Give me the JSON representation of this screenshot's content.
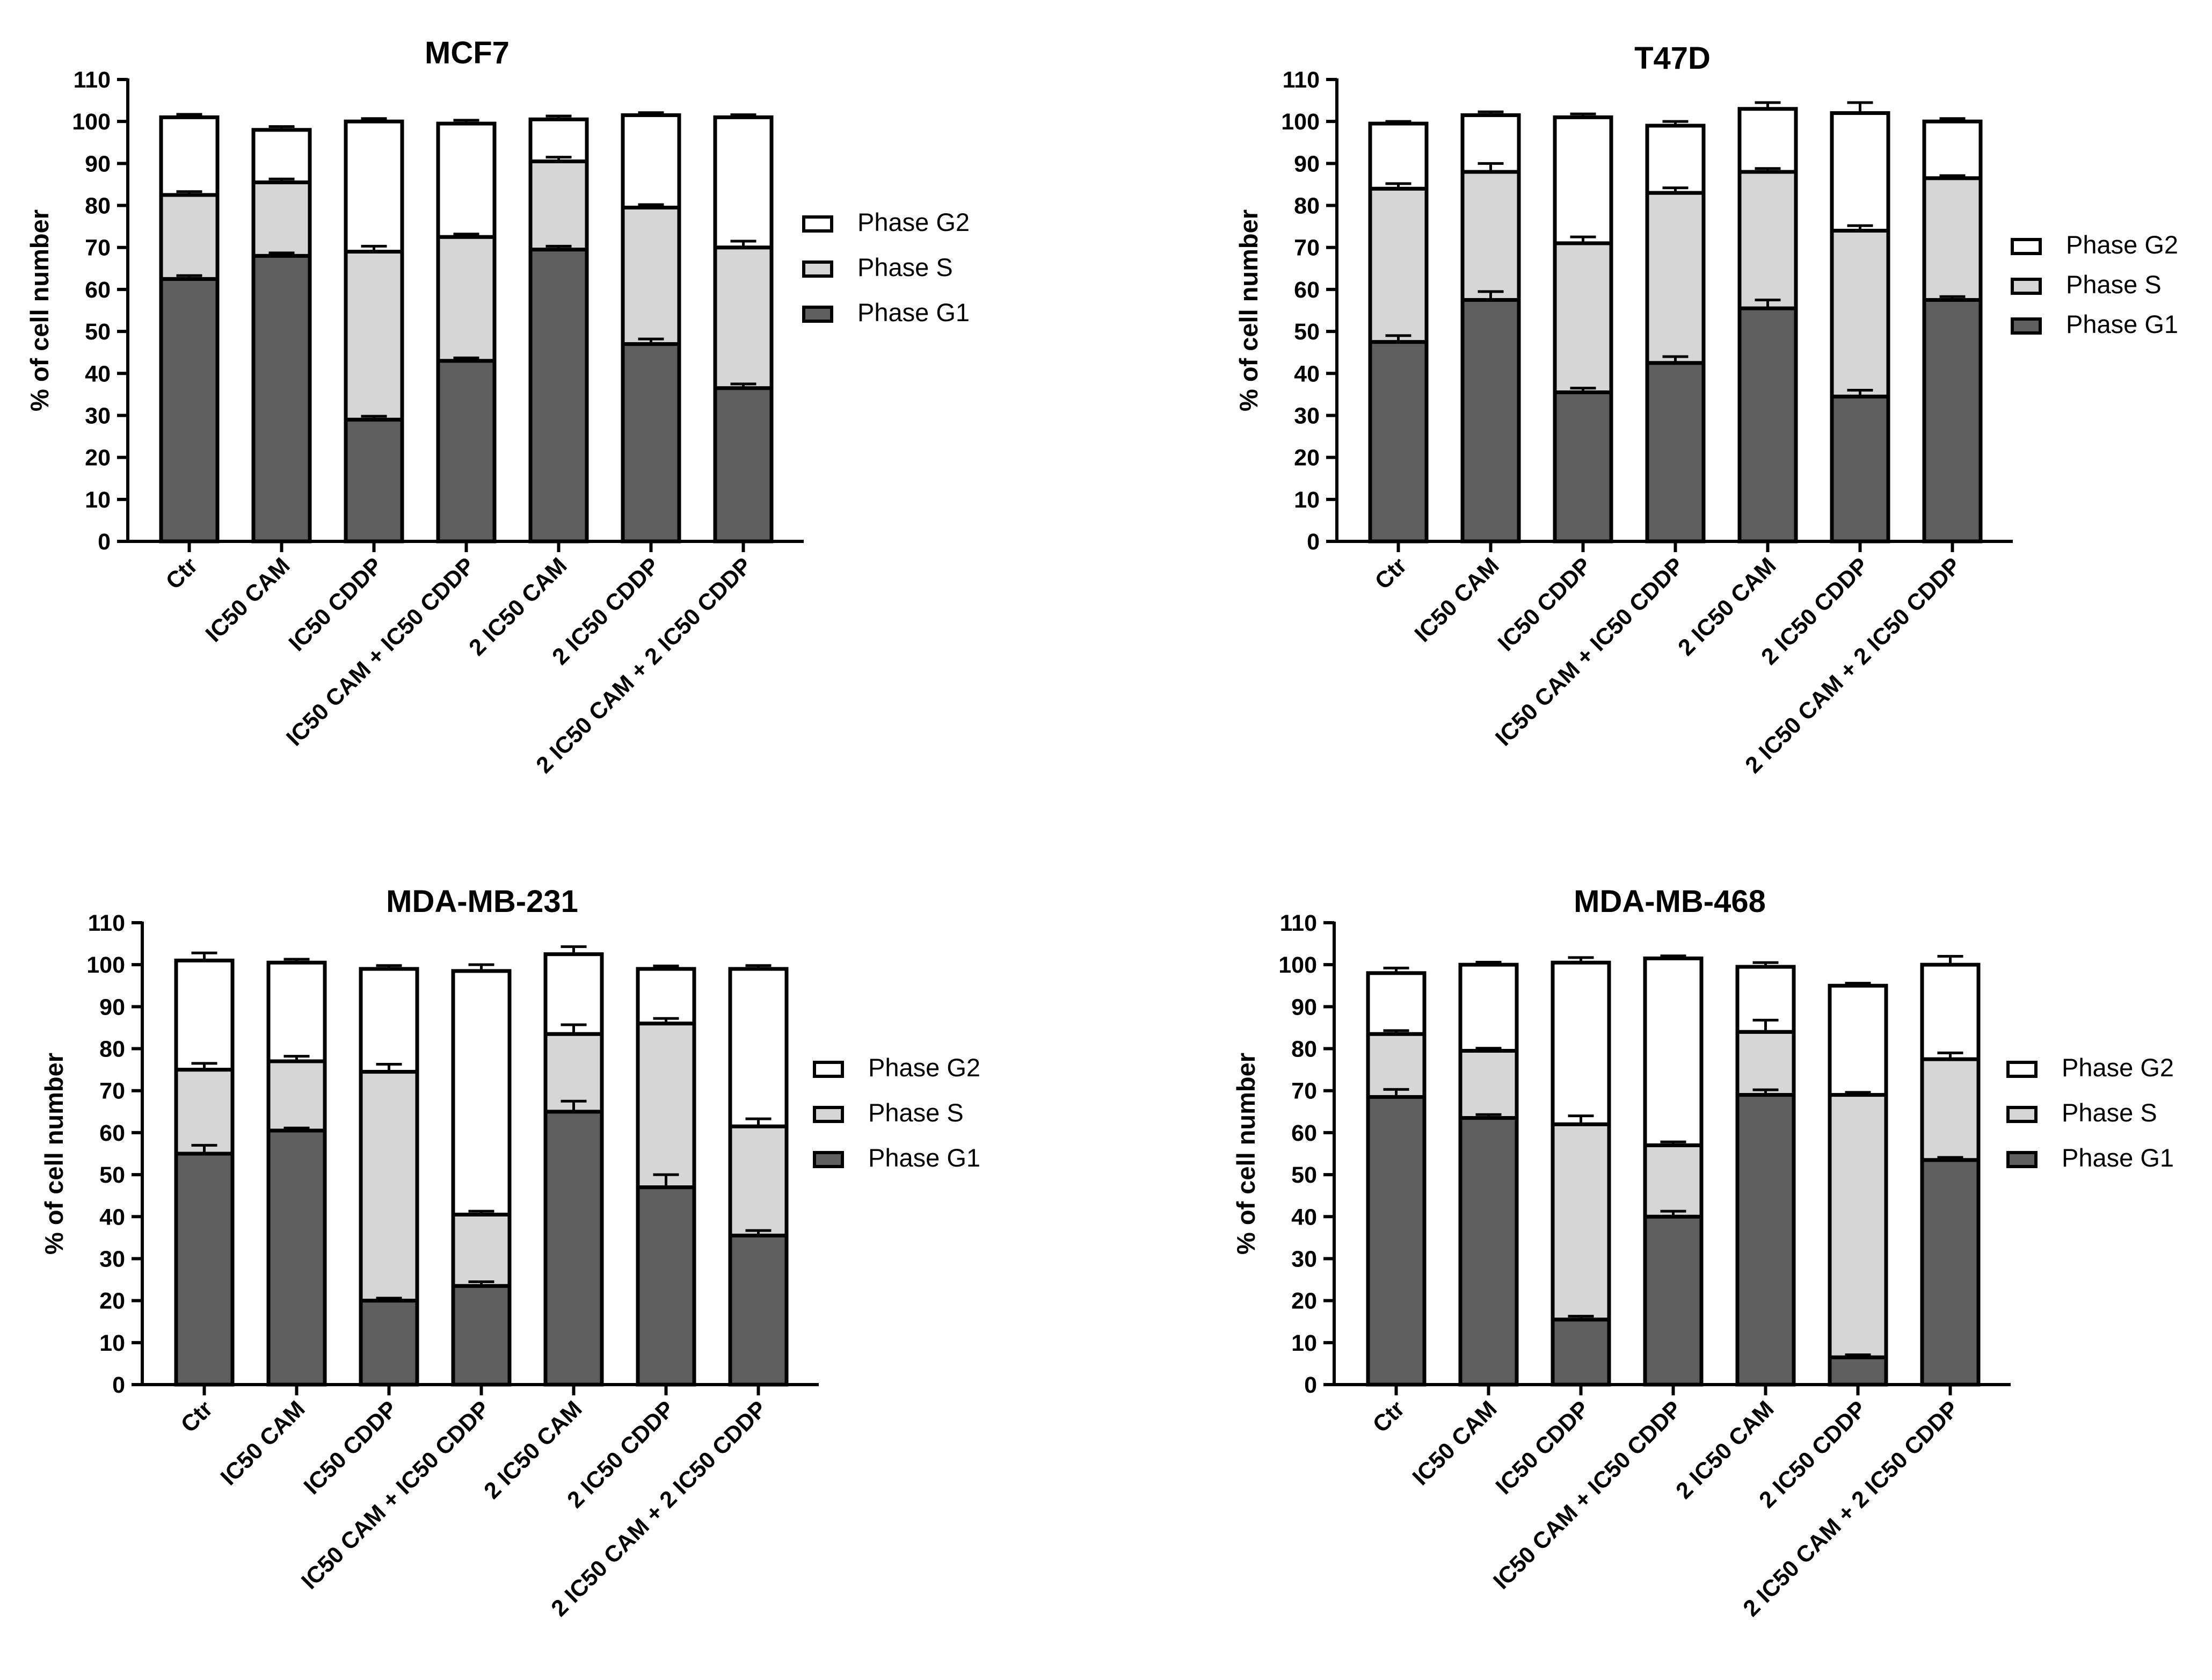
{
  "chart_data": [
    {
      "type": "bar",
      "stacked": true,
      "title": "MCF7",
      "ylabel": "% of cell number",
      "xlabel": "",
      "ylim": [
        0,
        110
      ],
      "yticks": [
        0,
        10,
        20,
        30,
        40,
        50,
        60,
        70,
        80,
        90,
        100,
        110
      ],
      "categories": [
        "Ctr",
        "IC50 CAM",
        "IC50 CDDP",
        "IC50 CAM + IC50 CDDP",
        "2 IC50 CAM",
        "2 IC50 CDDP",
        "2 IC50 CAM + 2 IC50 CDDP"
      ],
      "series": [
        {
          "name": "Phase G1",
          "color": "#5f5f5f",
          "values": [
            62.5,
            68,
            29,
            43,
            69.5,
            47,
            36.5
          ],
          "errors": [
            0.8,
            0.7,
            0.8,
            0.7,
            0.8,
            1.2,
            1.0
          ]
        },
        {
          "name": "Phase S",
          "color": "#d6d6d6",
          "values": [
            20,
            17.5,
            40,
            29.5,
            21,
            32.5,
            33.5
          ],
          "errors": [
            0.8,
            0.8,
            1.3,
            0.7,
            1.0,
            0.7,
            1.5
          ]
        },
        {
          "name": "Phase G2",
          "color": "#ffffff",
          "values": [
            18.5,
            12.5,
            31,
            27,
            10,
            22,
            31
          ],
          "errors": [
            0.7,
            0.8,
            0.7,
            0.8,
            0.8,
            0.6,
            0.6
          ]
        }
      ],
      "legend": [
        "Phase G2",
        "Phase S",
        "Phase G1"
      ],
      "legend_position": "right"
    },
    {
      "type": "bar",
      "stacked": true,
      "title": "T47D",
      "ylabel": "% of cell number",
      "xlabel": "",
      "ylim": [
        0,
        110
      ],
      "yticks": [
        0,
        10,
        20,
        30,
        40,
        50,
        60,
        70,
        80,
        90,
        100,
        110
      ],
      "categories": [
        "Ctr",
        "IC50 CAM",
        "IC50 CDDP",
        "IC50 CAM + IC50 CDDP",
        "2 IC50 CAM",
        "2 IC50 CDDP",
        "2 IC50 CAM + 2 IC50 CDDP"
      ],
      "series": [
        {
          "name": "Phase G1",
          "color": "#5f5f5f",
          "values": [
            47.5,
            57.5,
            35.5,
            42.5,
            55.5,
            34.5,
            57.5
          ],
          "errors": [
            1.5,
            2.0,
            1.0,
            1.5,
            2.0,
            1.5,
            0.8
          ]
        },
        {
          "name": "Phase S",
          "color": "#d6d6d6",
          "values": [
            36.5,
            30.5,
            35.5,
            40.5,
            32.5,
            39.5,
            29
          ],
          "errors": [
            1.2,
            2.0,
            1.5,
            1.2,
            0.8,
            1.2,
            0.6
          ]
        },
        {
          "name": "Phase G2",
          "color": "#ffffff",
          "values": [
            15.5,
            13.5,
            30,
            16,
            15,
            28,
            13.5
          ],
          "errors": [
            0.5,
            0.8,
            0.8,
            1.0,
            1.5,
            2.5,
            0.7
          ]
        }
      ],
      "legend": [
        "Phase G2",
        "Phase S",
        "Phase G1"
      ],
      "legend_position": "right"
    },
    {
      "type": "bar",
      "stacked": true,
      "title": "MDA-MB-231",
      "ylabel": "% of cell number",
      "xlabel": "",
      "ylim": [
        0,
        110
      ],
      "yticks": [
        0,
        10,
        20,
        30,
        40,
        50,
        60,
        70,
        80,
        90,
        100,
        110
      ],
      "categories": [
        "Ctr",
        "IC50 CAM",
        "IC50 CDDP",
        "IC50 CAM + IC50 CDDP",
        "2 IC50 CAM",
        "2 IC50 CDDP",
        "2 IC50 CAM + 2 IC50 CDDP"
      ],
      "series": [
        {
          "name": "Phase G1",
          "color": "#5f5f5f",
          "values": [
            55,
            60.5,
            20,
            23.5,
            65,
            47,
            35.5
          ],
          "errors": [
            2.0,
            0.6,
            0.6,
            1.0,
            2.5,
            3.0,
            1.2
          ]
        },
        {
          "name": "Phase S",
          "color": "#d6d6d6",
          "values": [
            20,
            16.5,
            54.5,
            17,
            18.5,
            39,
            26
          ],
          "errors": [
            1.5,
            1.2,
            1.8,
            0.8,
            2.2,
            1.2,
            1.8
          ]
        },
        {
          "name": "Phase G2",
          "color": "#ffffff",
          "values": [
            26,
            23.5,
            24.5,
            58,
            19,
            13,
            37.5
          ],
          "errors": [
            1.8,
            0.8,
            0.8,
            1.5,
            1.8,
            0.7,
            0.8
          ]
        }
      ],
      "legend": [
        "Phase G2",
        "Phase S",
        "Phase G1"
      ],
      "legend_position": "right"
    },
    {
      "type": "bar",
      "stacked": true,
      "title": "MDA-MB-468",
      "ylabel": "% of cell number",
      "xlabel": "",
      "ylim": [
        0,
        110
      ],
      "yticks": [
        0,
        10,
        20,
        30,
        40,
        50,
        60,
        70,
        80,
        90,
        100,
        110
      ],
      "categories": [
        "Ctr",
        "IC50 CAM",
        "IC50 CDDP",
        "IC50 CAM + IC50 CDDP",
        "2 IC50 CAM",
        "2 IC50 CDDP",
        "2 IC50 CAM + 2 IC50 CDDP"
      ],
      "series": [
        {
          "name": "Phase G1",
          "color": "#5f5f5f",
          "values": [
            68.5,
            63.5,
            15.5,
            40,
            69,
            6.5,
            53.5
          ],
          "errors": [
            1.8,
            0.8,
            0.8,
            1.3,
            1.2,
            0.6,
            0.6
          ]
        },
        {
          "name": "Phase S",
          "color": "#d6d6d6",
          "values": [
            15,
            16,
            46.5,
            17,
            15,
            62.5,
            24
          ],
          "errors": [
            0.8,
            0.6,
            2.0,
            0.8,
            2.8,
            0.6,
            1.5
          ]
        },
        {
          "name": "Phase G2",
          "color": "#ffffff",
          "values": [
            14.5,
            20.5,
            38.5,
            44.5,
            15.5,
            26,
            22.5
          ],
          "errors": [
            1.2,
            0.6,
            1.2,
            0.6,
            1.0,
            0.6,
            2.0
          ]
        }
      ],
      "legend": [
        "Phase G2",
        "Phase S",
        "Phase G1"
      ],
      "legend_position": "right"
    }
  ]
}
